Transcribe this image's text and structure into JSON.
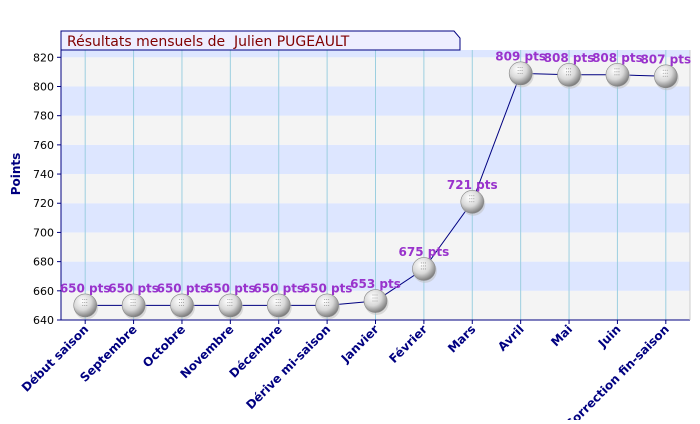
{
  "chart_data": {
    "type": "line",
    "title": "Résultats mensuels de  Julien PUGEAULT",
    "ylabel": "Points",
    "xlabel": "",
    "ylim": [
      640,
      825
    ],
    "yticks": [
      640,
      660,
      680,
      700,
      720,
      740,
      760,
      780,
      800,
      820
    ],
    "categories": [
      "Début saison",
      "Septembre",
      "Octobre",
      "Novembre",
      "Décembre",
      "Dérive mi-saison",
      "Janvier",
      "Février",
      "Mars",
      "Avril",
      "Mai",
      "Juin",
      "Correction fin-saison"
    ],
    "values": [
      650,
      650,
      650,
      650,
      650,
      650,
      653,
      675,
      721,
      809,
      808,
      808,
      807
    ],
    "value_labels": [
      "650 pts",
      "650 pts",
      "650 pts",
      "650 pts",
      "650 pts",
      "650 pts",
      "653 pts",
      "675 pts",
      "721 pts",
      "809 pts",
      "808 pts",
      "808 pts",
      "807 pts"
    ],
    "grid": true,
    "colors": {
      "line": "#000080",
      "value_label": "#9933cc",
      "band_light": "#f4f4f4",
      "band_blue": "#dde6ff",
      "title_text": "#800000",
      "title_bg": "#eeeeff",
      "axis": "#000080"
    }
  }
}
